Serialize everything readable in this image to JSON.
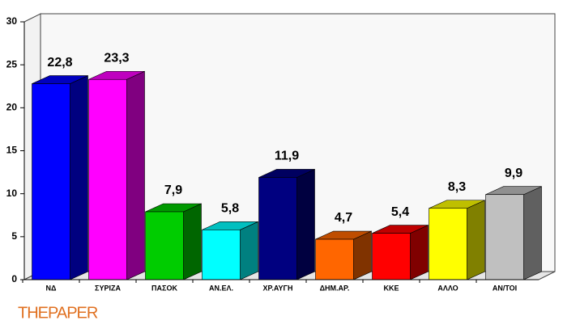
{
  "chart_data": {
    "type": "bar3d",
    "categories": [
      "ΝΔ",
      "ΣΥΡΙΖΑ",
      "ΠΑΣΟΚ",
      "ΑΝ.ΕΛ.",
      "ΧΡ.ΑΥΓΗ",
      "ΔΗΜ.ΑΡ.",
      "ΚΚΕ",
      "ΑΛΛΟ",
      "ΑΝ/ΤΟΙ"
    ],
    "values": [
      22.8,
      23.3,
      7.9,
      5.8,
      11.9,
      4.7,
      5.4,
      8.3,
      9.9
    ],
    "value_labels": [
      "22,8",
      "23,3",
      "7,9",
      "5,8",
      "11,9",
      "4,7",
      "5,4",
      "8,3",
      "9,9"
    ],
    "colors": [
      "#0000ff",
      "#ff00ff",
      "#00cc00",
      "#00ffff",
      "#000080",
      "#ff6600",
      "#ff0000",
      "#ffff00",
      "#c0c0c0"
    ],
    "ylim": [
      0,
      30
    ],
    "yticks": [
      0,
      5,
      10,
      15,
      20,
      25,
      30
    ],
    "grid": false
  },
  "logo": "THEPAPER"
}
